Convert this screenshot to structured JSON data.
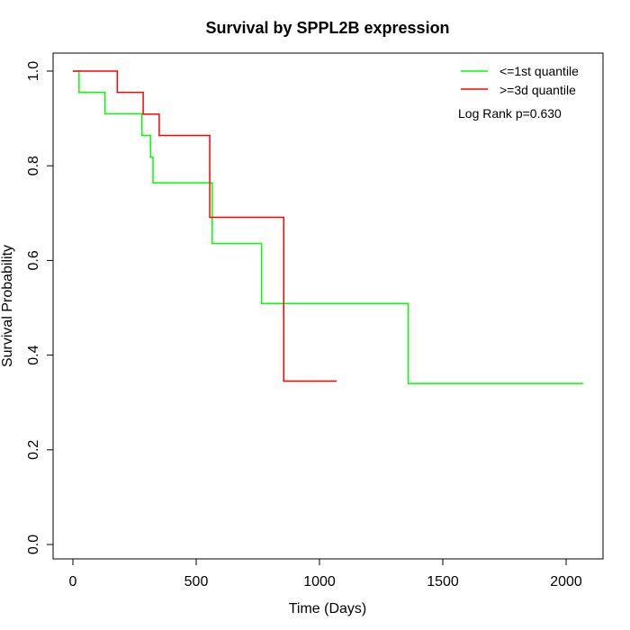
{
  "chart_data": {
    "type": "line",
    "title": "Survival by SPPL2B expression",
    "xlabel": "Time (Days)",
    "ylabel": "Survival Probability",
    "xlim": [
      0,
      2070
    ],
    "ylim": [
      0,
      1
    ],
    "x_ticks": [
      0,
      500,
      1000,
      1500,
      2000
    ],
    "x_tick_labels": [
      "0",
      "500",
      "1000",
      "1500",
      "2000"
    ],
    "y_ticks": [
      0.0,
      0.2,
      0.4,
      0.6,
      0.8,
      1.0
    ],
    "y_tick_labels": [
      "0.0",
      "0.2",
      "0.4",
      "0.6",
      "0.8",
      "1.0"
    ],
    "legend_position": "top-right",
    "annotation": "Log Rank p=0.630",
    "series": [
      {
        "name": "<=1st quantile",
        "color": "#00ff00",
        "step": true,
        "points": [
          [
            0,
            1.0
          ],
          [
            25,
            1.0
          ],
          [
            25,
            0.955
          ],
          [
            130,
            0.955
          ],
          [
            130,
            0.91
          ],
          [
            280,
            0.91
          ],
          [
            280,
            0.864
          ],
          [
            315,
            0.864
          ],
          [
            315,
            0.818
          ],
          [
            325,
            0.818
          ],
          [
            325,
            0.764
          ],
          [
            565,
            0.764
          ],
          [
            565,
            0.636
          ],
          [
            765,
            0.636
          ],
          [
            765,
            0.509
          ],
          [
            1360,
            0.509
          ],
          [
            1360,
            0.34
          ],
          [
            2070,
            0.34
          ]
        ]
      },
      {
        "name": ">=3d quantile",
        "color": "#ff0000",
        "step": true,
        "points": [
          [
            0,
            1.0
          ],
          [
            180,
            1.0
          ],
          [
            180,
            0.955
          ],
          [
            285,
            0.955
          ],
          [
            285,
            0.909
          ],
          [
            350,
            0.909
          ],
          [
            350,
            0.864
          ],
          [
            555,
            0.864
          ],
          [
            555,
            0.691
          ],
          [
            855,
            0.691
          ],
          [
            855,
            0.345
          ],
          [
            1070,
            0.345
          ]
        ]
      }
    ]
  }
}
